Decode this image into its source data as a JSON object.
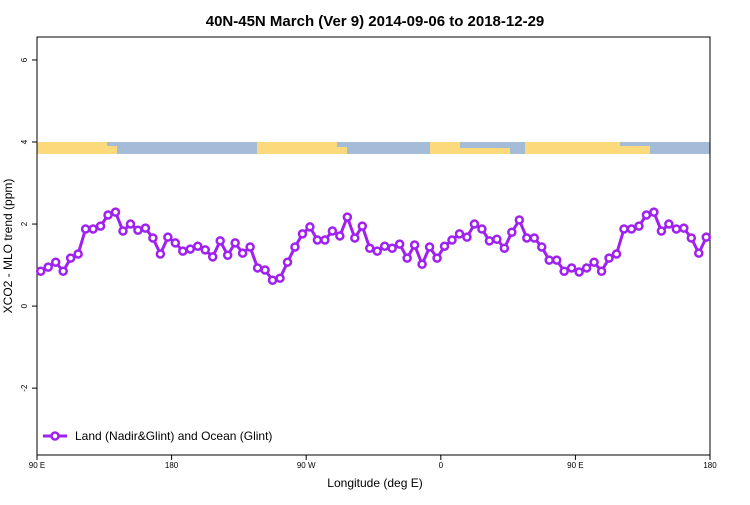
{
  "chart_data": {
    "type": "line",
    "title": "40N-45N March (Ver 9)   2014-09-06 to 2018-12-29",
    "x_label": "Longitude (deg E)",
    "y_label": "XCO2 - MLO trend (ppm)",
    "x": [
      92.5,
      97.5,
      102.5,
      107.5,
      112.5,
      117.5,
      122.5,
      127.5,
      132.5,
      137.5,
      142.5,
      147.5,
      152.5,
      157.5,
      162.5,
      167.5,
      172.5,
      177.5,
      182.5,
      187.5,
      192.5,
      197.5,
      202.5,
      207.5,
      212.5,
      217.5,
      222.5,
      227.5,
      232.5,
      237.5,
      242.5,
      247.5,
      252.5,
      257.5,
      262.5,
      267.5,
      272.5,
      277.5,
      282.5,
      287.5,
      292.5,
      297.5,
      302.5,
      307.5,
      312.5,
      317.5,
      322.5,
      327.5,
      332.5,
      337.5,
      342.5,
      347.5,
      352.5,
      357.5,
      362.5,
      367.5,
      372.5,
      377.5,
      382.5,
      387.5,
      392.5,
      397.5,
      402.5,
      407.5,
      412.5,
      417.5,
      422.5,
      427.5,
      432.5,
      437.5,
      442.5,
      447.5,
      452.5,
      457.5,
      462.5,
      467.5,
      472.5,
      477.5,
      482.5,
      487.5,
      492.5,
      497.5,
      502.5,
      507.5,
      512.5,
      517.5,
      522.5,
      527.5,
      532.5,
      537.5
    ],
    "series": [
      {
        "name": "Land (Nadir&Glint) and Ocean (Glint)",
        "color": "#a020f0",
        "values": [
          0.85,
          0.95,
          1.07,
          0.85,
          1.17,
          1.27,
          1.88,
          1.88,
          1.95,
          2.22,
          2.29,
          1.83,
          2.0,
          1.85,
          1.9,
          1.66,
          1.27,
          1.68,
          1.54,
          1.34,
          1.39,
          1.46,
          1.37,
          1.2,
          1.59,
          1.24,
          1.54,
          1.29,
          1.44,
          0.93,
          0.88,
          0.63,
          0.68,
          1.07,
          1.44,
          1.76,
          1.93,
          1.61,
          1.61,
          1.83,
          1.71,
          2.17,
          1.66,
          1.95,
          1.41,
          1.34,
          1.46,
          1.41,
          1.51,
          1.17,
          1.49,
          1.02,
          1.44,
          1.17,
          1.46,
          1.61,
          1.76,
          1.68,
          2.0,
          1.88,
          1.59,
          1.63,
          1.41,
          1.8,
          2.1,
          1.66,
          1.66,
          1.44,
          1.12,
          1.12,
          0.85,
          0.93,
          0.83,
          0.93,
          1.07,
          0.85,
          1.17,
          1.27,
          1.88,
          1.88,
          1.95,
          2.22,
          2.29,
          1.83,
          2.0,
          1.88,
          1.9,
          1.66,
          1.29,
          1.68
        ]
      }
    ],
    "xlim": [
      90,
      540
    ],
    "xticks": [
      {
        "value": 90,
        "label": "90 E"
      },
      180,
      {
        "value": 270,
        "label": "90 W"
      },
      {
        "value": 360,
        "label": "0"
      },
      {
        "value": 450,
        "label": "90 E"
      },
      {
        "value": 540,
        "label": "180"
      }
    ],
    "ylim": [
      -3.63,
      6.56
    ],
    "yticks": [
      -2,
      0,
      2,
      4,
      6
    ],
    "legend": "bottom-left"
  }
}
